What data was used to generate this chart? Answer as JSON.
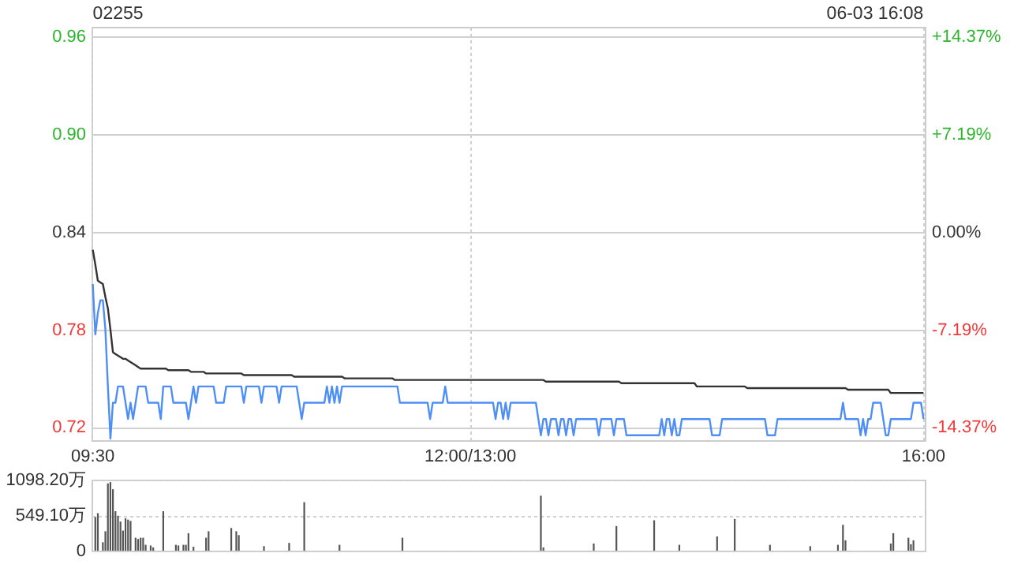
{
  "chart_data": [
    {
      "type": "line",
      "title": "02255",
      "annotations": [
        "06-03 16:08"
      ],
      "categories": [
        "09:30",
        null,
        null,
        null,
        null,
        null,
        null,
        null,
        null,
        null,
        null,
        null,
        null,
        null,
        null,
        null,
        null,
        null,
        null,
        null,
        null,
        null,
        null,
        null,
        null,
        null,
        null,
        null,
        null,
        null,
        null,
        null,
        null,
        null,
        null,
        null,
        null,
        null,
        null,
        null,
        null,
        null,
        null,
        null,
        null,
        null,
        null,
        null,
        null,
        null,
        null,
        null,
        null,
        null,
        null,
        null,
        null,
        null,
        null,
        null,
        null,
        null,
        null,
        null,
        null,
        null,
        null,
        null,
        null,
        null,
        null,
        null,
        null,
        null,
        null,
        null,
        null,
        null,
        null,
        null,
        null,
        null,
        null,
        null,
        null,
        null,
        null,
        null,
        null,
        null,
        null,
        null,
        null,
        null,
        null,
        null,
        null,
        null,
        null,
        null,
        null,
        null,
        null,
        null,
        null,
        null,
        null,
        null,
        null,
        null,
        null,
        null,
        null,
        null,
        null,
        null,
        null,
        null,
        null,
        null,
        null,
        null,
        null,
        null,
        null,
        null,
        null,
        null,
        null,
        null,
        null,
        null,
        null,
        null,
        null,
        null,
        null,
        null,
        null,
        null,
        null,
        null,
        null,
        null,
        null,
        null,
        null,
        null,
        null,
        null,
        "12:00/13:00",
        null,
        null,
        null,
        null,
        null,
        null,
        null,
        null,
        null,
        null,
        null,
        null,
        null,
        null,
        null,
        null,
        null,
        null,
        null,
        null,
        null,
        null,
        null,
        null,
        null,
        null,
        null,
        null,
        null,
        null,
        null,
        null,
        null,
        null,
        null,
        null,
        null,
        null,
        null,
        null,
        null,
        null,
        null,
        null,
        null,
        null,
        null,
        null,
        null,
        null,
        null,
        null,
        null,
        null,
        null,
        null,
        null,
        null,
        null,
        null,
        null,
        null,
        null,
        null,
        null,
        null,
        null,
        null,
        null,
        null,
        null,
        null,
        null,
        null,
        null,
        null,
        null,
        null,
        null,
        null,
        null,
        null,
        null,
        null,
        null,
        null,
        null,
        null,
        null,
        null,
        null,
        null,
        null,
        null,
        null,
        null,
        null,
        null,
        null,
        null,
        null,
        null,
        null,
        null,
        null,
        null,
        null,
        null,
        null,
        null,
        null,
        null,
        null,
        null,
        null,
        null,
        null,
        null,
        null,
        null,
        null,
        null,
        null,
        null,
        null,
        null,
        null,
        null,
        null,
        null,
        null,
        null,
        null,
        null,
        null,
        null,
        null,
        null,
        null,
        null,
        null,
        null,
        null,
        null,
        null,
        null,
        null,
        null,
        null,
        null,
        null,
        null,
        null,
        null,
        null,
        null,
        null,
        null,
        null,
        null,
        null,
        null,
        null,
        null,
        null,
        null,
        null,
        null,
        null,
        null,
        null,
        null,
        null,
        null,
        null,
        null,
        null,
        null,
        null,
        "16:00"
      ],
      "ylim": [
        0.712,
        0.966
      ],
      "yticks": [
        0.72,
        0.78,
        0.84,
        {
          "value": 0.9,
          "label": "0.90"
        },
        0.96
      ],
      "y2lim": [
        -15.33,
        15.09
      ],
      "y2ticks": [
        {
          "value": -14.37,
          "label": "-14.37%"
        },
        {
          "value": -7.19,
          "label": "-7.19%"
        },
        {
          "value": 0,
          "label": "0.00%"
        },
        {
          "value": 7.19,
          "label": "+7.19%"
        },
        {
          "value": 14.37,
          "label": "+14.37%"
        }
      ],
      "grid": true,
      "series": [
        {
          "color": "#4e8ef7",
          "values": [
            0.808,
            0.777,
            0.79,
            0.798,
            0.798,
            0.78,
            0.745,
            0.713,
            0.735,
            0.735,
            0.745,
            0.745,
            0.745,
            0.735,
            0.725,
            0.735,
            0.725,
            0.735,
            0.745,
            0.745,
            0.745,
            0.745,
            0.735,
            0.735,
            0.735,
            0.735,
            0.735,
            0.725,
            0.745,
            0.745,
            0.745,
            0.745,
            0.735,
            0.735,
            0.735,
            0.735,
            0.735,
            0.735,
            0.725,
            0.735,
            0.745,
            0.735,
            0.745,
            0.745,
            0.745,
            0.745,
            0.745,
            0.745,
            0.745,
            0.735,
            0.735,
            0.735,
            0.735,
            0.745,
            0.745,
            0.745,
            0.745,
            0.745,
            0.745,
            0.745,
            0.735,
            0.745,
            0.745,
            0.745,
            0.745,
            0.745,
            0.745,
            0.735,
            0.745,
            0.745,
            0.745,
            0.745,
            0.745,
            0.745,
            0.735,
            0.745,
            0.745,
            0.745,
            0.745,
            0.745,
            0.745,
            0.745,
            0.735,
            0.725,
            0.735,
            0.735,
            0.735,
            0.735,
            0.735,
            0.735,
            0.735,
            0.735,
            0.735,
            0.745,
            0.735,
            0.745,
            0.735,
            0.745,
            0.735,
            0.745,
            0.745,
            0.745,
            0.745,
            0.745,
            0.745,
            0.745,
            0.745,
            0.745,
            0.745,
            0.745,
            0.745,
            0.745,
            0.745,
            0.745,
            0.745,
            0.745,
            0.745,
            0.745,
            0.745,
            0.745,
            0.745,
            0.745,
            0.735,
            0.735,
            0.735,
            0.735,
            0.735,
            0.735,
            0.735,
            0.735,
            0.735,
            0.735,
            0.735,
            0.735,
            0.725,
            0.735,
            0.735,
            0.735,
            0.735,
            0.735,
            0.745,
            0.735,
            0.735,
            0.735,
            0.735,
            0.735,
            0.735,
            0.735,
            0.735,
            0.735,
            0.735,
            0.735,
            0.735,
            0.735,
            0.735,
            0.735,
            0.735,
            0.735,
            0.735,
            0.735,
            0.725,
            0.735,
            0.735,
            0.725,
            0.735,
            0.725,
            0.735,
            0.735,
            0.735,
            0.735,
            0.735,
            0.735,
            0.735,
            0.735,
            0.735,
            0.735,
            0.735,
            0.725,
            0.715,
            0.725,
            0.725,
            0.715,
            0.725,
            0.725,
            0.725,
            0.715,
            0.725,
            0.725,
            0.715,
            0.725,
            0.725,
            0.715,
            0.725,
            0.725,
            0.725,
            0.725,
            0.725,
            0.725,
            0.725,
            0.725,
            0.725,
            0.715,
            0.725,
            0.725,
            0.725,
            0.725,
            0.725,
            0.715,
            0.725,
            0.725,
            0.725,
            0.725,
            0.715,
            0.715,
            0.715,
            0.715,
            0.715,
            0.715,
            0.715,
            0.715,
            0.715,
            0.715,
            0.715,
            0.715,
            0.715,
            0.715,
            0.725,
            0.715,
            0.725,
            0.725,
            0.715,
            0.725,
            0.715,
            0.715,
            0.725,
            0.725,
            0.725,
            0.725,
            0.725,
            0.725,
            0.725,
            0.725,
            0.725,
            0.725,
            0.725,
            0.725,
            0.715,
            0.715,
            0.715,
            0.715,
            0.725,
            0.725,
            0.725,
            0.725,
            0.725,
            0.725,
            0.725,
            0.725,
            0.725,
            0.725,
            0.725,
            0.725,
            0.725,
            0.725,
            0.725,
            0.725,
            0.725,
            0.725,
            0.715,
            0.715,
            0.715,
            0.715,
            0.725,
            0.725,
            0.725,
            0.725,
            0.725,
            0.725,
            0.725,
            0.725,
            0.725,
            0.725,
            0.725,
            0.725,
            0.725,
            0.725,
            0.725,
            0.725,
            0.725,
            0.725,
            0.725,
            0.725,
            0.725,
            0.725,
            0.725,
            0.725,
            0.725,
            0.725,
            0.735,
            0.725,
            0.725,
            0.725,
            0.725,
            0.725,
            0.725,
            0.715,
            0.725,
            0.715,
            0.725,
            0.725,
            0.735,
            0.735,
            0.735,
            0.735,
            0.725,
            0.715,
            0.715,
            0.725,
            0.725,
            0.725,
            0.725,
            0.725,
            0.725,
            0.725,
            0.725,
            0.725,
            0.735,
            0.735,
            0.735,
            0.735,
            0.725
          ]
        },
        {
          "color": "#333333",
          "values": [
            0.829,
            0.82,
            0.81,
            0.809,
            0.808,
            0.8,
            0.793,
            0.78,
            0.766,
            0.765,
            0.764,
            0.763,
            0.762,
            0.762,
            0.761,
            0.76,
            0.759,
            0.758,
            0.757,
            0.756,
            0.756,
            0.756,
            0.756,
            0.756,
            0.756,
            0.756,
            0.756,
            0.756,
            0.756,
            0.756,
            0.755,
            0.755,
            0.755,
            0.755,
            0.755,
            0.755,
            0.755,
            0.755,
            0.755,
            0.754,
            0.754,
            0.754,
            0.754,
            0.754,
            0.754,
            0.753,
            0.753,
            0.753,
            0.753,
            0.753,
            0.753,
            0.753,
            0.753,
            0.753,
            0.753,
            0.753,
            0.753,
            0.753,
            0.753,
            0.753,
            0.752,
            0.752,
            0.752,
            0.752,
            0.752,
            0.752,
            0.752,
            0.752,
            0.752,
            0.752,
            0.752,
            0.752,
            0.752,
            0.752,
            0.752,
            0.752,
            0.752,
            0.752,
            0.752,
            0.752,
            0.751,
            0.751,
            0.751,
            0.751,
            0.751,
            0.751,
            0.751,
            0.751,
            0.751,
            0.751,
            0.751,
            0.751,
            0.751,
            0.751,
            0.751,
            0.751,
            0.751,
            0.751,
            0.751,
            0.751,
            0.75,
            0.75,
            0.75,
            0.75,
            0.75,
            0.75,
            0.75,
            0.75,
            0.75,
            0.75,
            0.75,
            0.75,
            0.75,
            0.75,
            0.75,
            0.75,
            0.75,
            0.75,
            0.75,
            0.75,
            0.749,
            0.749,
            0.749,
            0.749,
            0.749,
            0.749,
            0.749,
            0.749,
            0.749,
            0.749,
            0.749,
            0.749,
            0.749,
            0.749,
            0.749,
            0.749,
            0.749,
            0.749,
            0.749,
            0.749,
            0.749,
            0.749,
            0.749,
            0.749,
            0.749,
            0.749,
            0.749,
            0.749,
            0.749,
            0.749,
            0.749,
            0.749,
            0.749,
            0.749,
            0.749,
            0.749,
            0.749,
            0.749,
            0.749,
            0.749,
            0.749,
            0.749,
            0.749,
            0.749,
            0.749,
            0.749,
            0.749,
            0.749,
            0.749,
            0.749,
            0.749,
            0.749,
            0.749,
            0.749,
            0.749,
            0.749,
            0.749,
            0.749,
            0.749,
            0.749,
            0.748,
            0.748,
            0.748,
            0.748,
            0.748,
            0.748,
            0.748,
            0.748,
            0.748,
            0.748,
            0.748,
            0.748,
            0.748,
            0.748,
            0.748,
            0.748,
            0.748,
            0.748,
            0.748,
            0.748,
            0.748,
            0.748,
            0.748,
            0.748,
            0.748,
            0.748,
            0.748,
            0.748,
            0.748,
            0.748,
            0.747,
            0.747,
            0.747,
            0.747,
            0.747,
            0.747,
            0.747,
            0.747,
            0.747,
            0.747,
            0.747,
            0.747,
            0.747,
            0.747,
            0.747,
            0.747,
            0.747,
            0.747,
            0.747,
            0.747,
            0.747,
            0.747,
            0.747,
            0.747,
            0.747,
            0.747,
            0.747,
            0.747,
            0.747,
            0.747,
            0.745,
            0.745,
            0.745,
            0.745,
            0.745,
            0.745,
            0.745,
            0.745,
            0.745,
            0.745,
            0.745,
            0.745,
            0.745,
            0.745,
            0.745,
            0.745,
            0.745,
            0.745,
            0.745,
            0.745,
            0.744,
            0.744,
            0.744,
            0.744,
            0.744,
            0.744,
            0.744,
            0.744,
            0.744,
            0.744,
            0.744,
            0.744,
            0.744,
            0.744,
            0.744,
            0.744,
            0.744,
            0.744,
            0.744,
            0.744,
            0.744,
            0.744,
            0.744,
            0.744,
            0.744,
            0.744,
            0.744,
            0.744,
            0.744,
            0.744,
            0.744,
            0.744,
            0.744,
            0.744,
            0.744,
            0.744,
            0.744,
            0.744,
            0.744,
            0.744,
            0.743,
            0.743,
            0.743,
            0.743,
            0.743,
            0.743,
            0.743,
            0.743,
            0.743,
            0.743,
            0.743,
            0.743,
            0.743,
            0.743,
            0.743,
            0.743,
            0.743,
            0.741,
            0.741,
            0.741,
            0.741,
            0.741,
            0.741,
            0.741,
            0.741,
            0.741,
            0.741,
            0.741,
            0.741,
            0.741,
            0.741
          ]
        }
      ]
    },
    {
      "type": "bar",
      "tick_labels": "y",
      "grid": "y",
      "categories": [
        null,
        null,
        null,
        null,
        null,
        null,
        null,
        null,
        null,
        null,
        null,
        null,
        null,
        null,
        null,
        null,
        null,
        null,
        null,
        null,
        null,
        null,
        null,
        null,
        null,
        null,
        null,
        null,
        null,
        null,
        null,
        null,
        null,
        null,
        null,
        null,
        null,
        null,
        null,
        null,
        null,
        null,
        null,
        null,
        null,
        null,
        null,
        null,
        null,
        null,
        null,
        null,
        null,
        null,
        null,
        null,
        null,
        null,
        null,
        null,
        null,
        null,
        null,
        null,
        null,
        null,
        null,
        null,
        null,
        null,
        null,
        null,
        null,
        null,
        null,
        null,
        null,
        null,
        null,
        null,
        null,
        null,
        null,
        null,
        null,
        null,
        null,
        null,
        null,
        null,
        null,
        null,
        null,
        null,
        null,
        null,
        null,
        null,
        null,
        null,
        null,
        null,
        null,
        null,
        null,
        null,
        null,
        null,
        null,
        null,
        null,
        null,
        null,
        null,
        null,
        null,
        null,
        null,
        null,
        null,
        null,
        null,
        null,
        null,
        null,
        null,
        null,
        null,
        null,
        null,
        null,
        null,
        null,
        null,
        null,
        null,
        null,
        null,
        null,
        null,
        null,
        null,
        null,
        null,
        null,
        null,
        null,
        null,
        null,
        null,
        null,
        null,
        null,
        null,
        null,
        null,
        null,
        null,
        null,
        null,
        null,
        null,
        null,
        null,
        null,
        null,
        null,
        null,
        null,
        null,
        null,
        null,
        null,
        null,
        null,
        null,
        null,
        null,
        null,
        null,
        null,
        null,
        null,
        null,
        null,
        null,
        null,
        null,
        null,
        null,
        null,
        null,
        null,
        null,
        null,
        null,
        null,
        null,
        null,
        null,
        null,
        null,
        null,
        null,
        null,
        null,
        null,
        null,
        null,
        null,
        null,
        null,
        null,
        null,
        null,
        null,
        null,
        null,
        null,
        null,
        null,
        null,
        null,
        null,
        null,
        null,
        null,
        null,
        null,
        null,
        null,
        null,
        null,
        null,
        null,
        null,
        null,
        null,
        null,
        null,
        null,
        null,
        null,
        null,
        null,
        null,
        null,
        null,
        null,
        null,
        null,
        null,
        null,
        null,
        null,
        null,
        null,
        null,
        null,
        null,
        null,
        null,
        null,
        null,
        null,
        null,
        null,
        null,
        null,
        null,
        null,
        null,
        null,
        null,
        null,
        null,
        null,
        null,
        null,
        null,
        null,
        null,
        null,
        null,
        null,
        null,
        null,
        null,
        null,
        null,
        null,
        null,
        null,
        null,
        null,
        null,
        null,
        null,
        null,
        null,
        null,
        null,
        null,
        null,
        null,
        null,
        null,
        null,
        null,
        null,
        null,
        null,
        null,
        null,
        null,
        null,
        null,
        null,
        null,
        null,
        null,
        null,
        null,
        null,
        null,
        null,
        null,
        null,
        null,
        null,
        null
      ],
      "ylim": [
        0,
        1098.2
      ],
      "yticks": [
        0,
        {
          "value": 549.1,
          "label": "549.10万"
        },
        {
          "value": 1098.2,
          "label": "1098.20万"
        }
      ],
      "color": "#555555",
      "values": [
        0,
        520,
        580,
        0,
        130,
        300,
        1040,
        1060,
        950,
        610,
        540,
        450,
        310,
        500,
        480,
        460,
        0,
        200,
        180,
        200,
        200,
        90,
        0,
        80,
        50,
        0,
        0,
        0,
        610,
        0,
        0,
        0,
        0,
        90,
        80,
        0,
        90,
        90,
        270,
        0,
        60,
        0,
        0,
        0,
        0,
        200,
        300,
        0,
        0,
        0,
        0,
        0,
        0,
        0,
        0,
        350,
        0,
        300,
        240,
        0,
        0,
        0,
        0,
        0,
        0,
        0,
        0,
        0,
        70,
        0,
        0,
        0,
        0,
        0,
        0,
        0,
        0,
        0,
        120,
        0,
        0,
        0,
        0,
        0,
        750,
        0,
        0,
        0,
        0,
        0,
        0,
        0,
        0,
        0,
        0,
        0,
        0,
        0,
        90,
        0,
        0,
        0,
        0,
        0,
        0,
        0,
        0,
        0,
        0,
        0,
        0,
        0,
        0,
        0,
        0,
        0,
        0,
        0,
        0,
        0,
        0,
        0,
        0,
        200,
        0,
        0,
        0,
        0,
        0,
        0,
        0,
        0,
        0,
        0,
        0,
        0,
        0,
        0,
        0,
        0,
        0,
        0,
        0,
        0,
        0,
        0,
        0,
        0,
        0,
        0,
        0,
        0,
        0,
        0,
        0,
        0,
        0,
        0,
        0,
        0,
        0,
        0,
        0,
        0,
        0,
        0,
        0,
        0,
        0,
        0,
        0,
        0,
        0,
        0,
        0,
        0,
        0,
        0,
        850,
        50,
        0,
        0,
        0,
        0,
        0,
        0,
        0,
        0,
        0,
        0,
        0,
        0,
        0,
        0,
        0,
        0,
        0,
        0,
        0,
        110,
        0,
        0,
        0,
        0,
        0,
        0,
        0,
        0,
        380,
        0,
        0,
        0,
        0,
        0,
        0,
        0,
        0,
        0,
        0,
        0,
        0,
        0,
        0,
        470,
        0,
        0,
        0,
        0,
        0,
        0,
        0,
        0,
        0,
        90,
        0,
        0,
        0,
        0,
        0,
        0,
        0,
        0,
        0,
        0,
        0,
        0,
        0,
        0,
        220,
        0,
        0,
        0,
        0,
        0,
        0,
        490,
        0,
        0,
        0,
        0,
        0,
        0,
        0,
        0,
        0,
        0,
        0,
        0,
        0,
        90,
        0,
        0,
        0,
        0,
        0,
        0,
        0,
        0,
        0,
        0,
        0,
        0,
        0,
        0,
        0,
        70,
        0,
        0,
        0,
        0,
        0,
        0,
        0,
        0,
        0,
        0,
        90,
        0,
        400,
        160,
        0,
        0,
        0,
        0,
        0,
        0,
        0,
        0,
        0,
        0,
        0,
        0,
        0,
        0,
        0,
        0,
        0,
        110,
        270,
        0,
        0,
        0,
        0,
        0,
        200,
        100,
        160,
        0,
        0,
        0,
        0
      ]
    }
  ]
}
